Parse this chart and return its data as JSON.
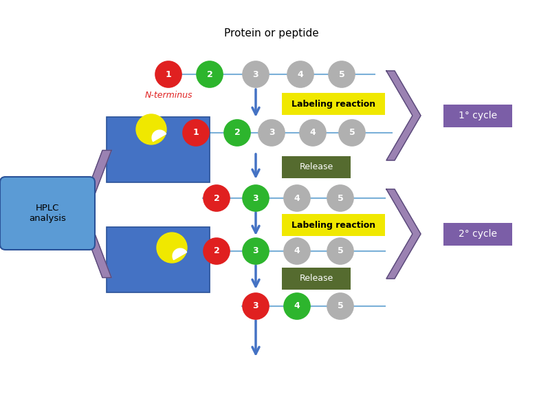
{
  "title": "Protein or peptide",
  "bg_color": "#ffffff",
  "colors": {
    "red": "#e02020",
    "green": "#2db52d",
    "gray": "#b0b0b0",
    "yellow": "#f0e800",
    "blue_arrow": "#4472c4",
    "blue_box": "#4472c4",
    "hplc_box": "#5b9bd5",
    "purple_chevron": "#9b82b2",
    "purple_label": "#7b5ea7",
    "dark_olive": "#556b2f",
    "line_color": "#7ab0d8"
  },
  "cycle_labels": [
    "1° cycle",
    "2° cycle"
  ],
  "reaction_label": "Labeling reaction",
  "release_label": "Release",
  "hplc_label": "HPLC\nanalysis",
  "n_terminus_label": "N-terminus"
}
